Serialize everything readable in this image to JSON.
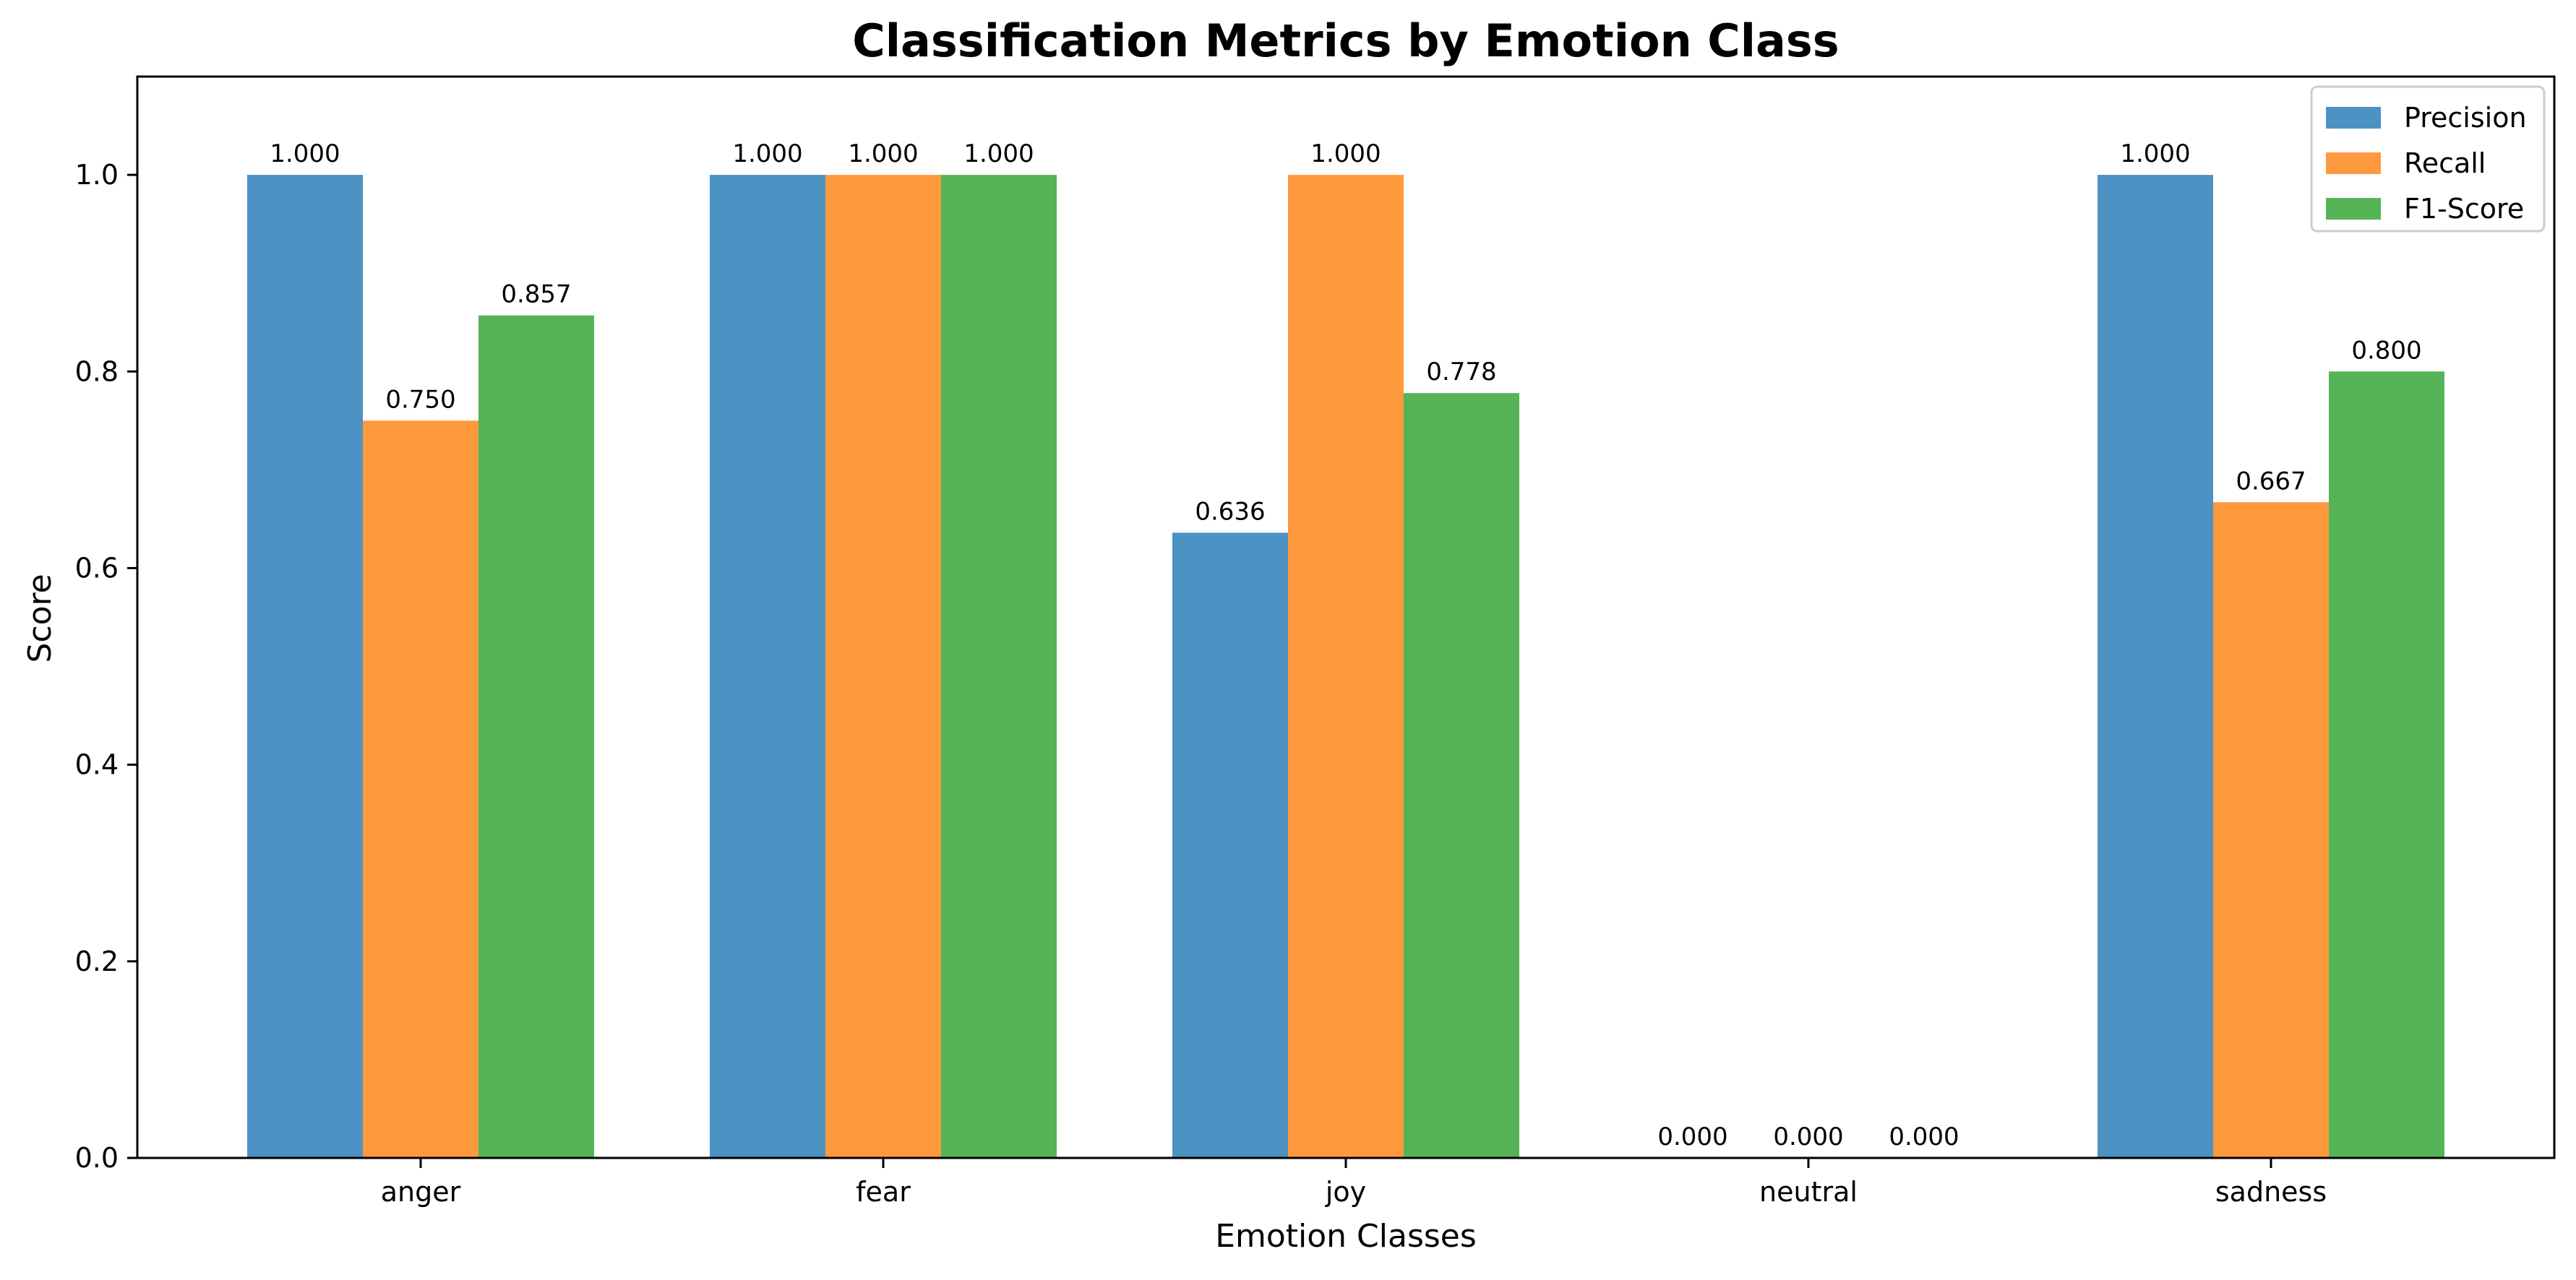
{
  "chart_data": {
    "type": "bar",
    "title": "Classification Metrics by Emotion Class",
    "xlabel": "Emotion Classes",
    "ylabel": "Score",
    "categories": [
      "anger",
      "fear",
      "joy",
      "neutral",
      "sadness"
    ],
    "series": [
      {
        "name": "Precision",
        "color": "#4c92c3",
        "values": [
          1.0,
          1.0,
          0.636,
          0.0,
          1.0
        ],
        "labels": [
          "1.000",
          "1.000",
          "0.636",
          "0.000",
          "1.000"
        ]
      },
      {
        "name": "Recall",
        "color": "#ff993e",
        "values": [
          0.75,
          1.0,
          1.0,
          0.0,
          0.667
        ],
        "labels": [
          "0.750",
          "1.000",
          "1.000",
          "0.000",
          "0.667"
        ]
      },
      {
        "name": "F1-Score",
        "color": "#56b356",
        "values": [
          0.857,
          1.0,
          0.778,
          0.0,
          0.8
        ],
        "labels": [
          "0.857",
          "1.000",
          "0.778",
          "0.000",
          "0.800"
        ]
      }
    ],
    "ylim": [
      0,
      1.1
    ],
    "yticks": [
      0.0,
      0.2,
      0.4,
      0.6,
      0.8,
      1.0
    ],
    "ytick_labels": [
      "0.0",
      "0.2",
      "0.4",
      "0.6",
      "0.8",
      "1.0"
    ],
    "grid": false,
    "legend_position": "top-right"
  }
}
